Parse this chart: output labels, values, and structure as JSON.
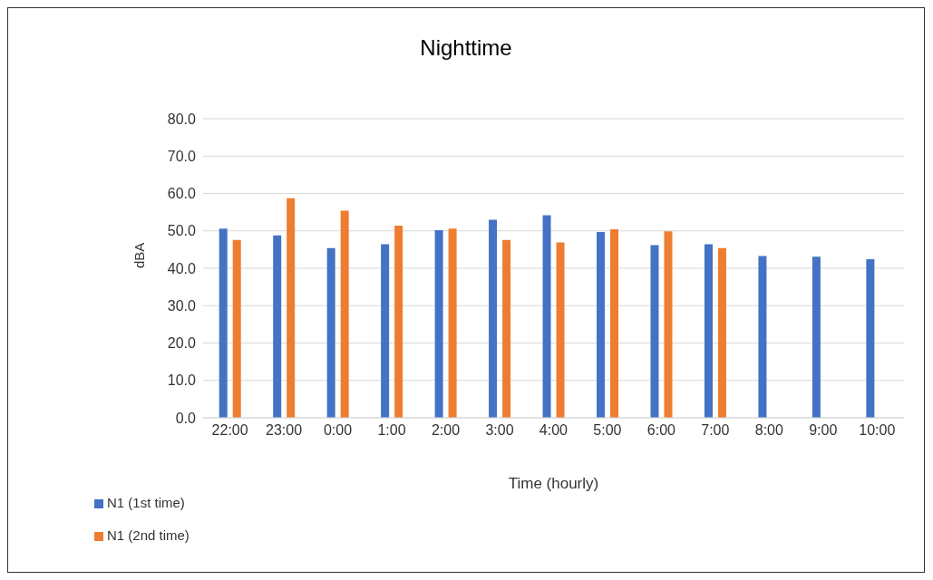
{
  "chart_data": {
    "type": "bar",
    "title": "Nighttime",
    "xlabel": "Time (hourly)",
    "ylabel": "dBA",
    "categories": [
      "22:00",
      "23:00",
      "0:00",
      "1:00",
      "2:00",
      "3:00",
      "4:00",
      "5:00",
      "6:00",
      "7:00",
      "8:00",
      "9:00",
      "10:00"
    ],
    "series": [
      {
        "name": "N1 (1st time)",
        "color": "#4472c4",
        "values": [
          50.6,
          48.8,
          45.4,
          46.4,
          50.2,
          53.0,
          54.2,
          49.7,
          46.2,
          46.4,
          43.3,
          43.1,
          42.4
        ]
      },
      {
        "name": "N1 (2nd time)",
        "color": "#ed7d31",
        "values": [
          47.6,
          58.7,
          55.4,
          51.4,
          50.6,
          47.6,
          46.9,
          50.4,
          49.9,
          45.4,
          null,
          null,
          null
        ]
      }
    ],
    "ylim": [
      0,
      80
    ],
    "yticks": [
      {
        "value": 0,
        "label": "0.0"
      },
      {
        "value": 10,
        "label": "10.0"
      },
      {
        "value": 20,
        "label": "20.0"
      },
      {
        "value": 30,
        "label": "30.0"
      },
      {
        "value": 40,
        "label": "40.0"
      },
      {
        "value": 50,
        "label": "50.0"
      },
      {
        "value": 60,
        "label": "60.0"
      },
      {
        "value": 70,
        "label": "70.0"
      },
      {
        "value": 80,
        "label": "80.0"
      }
    ],
    "grid": "y",
    "legend": "bottom left"
  }
}
